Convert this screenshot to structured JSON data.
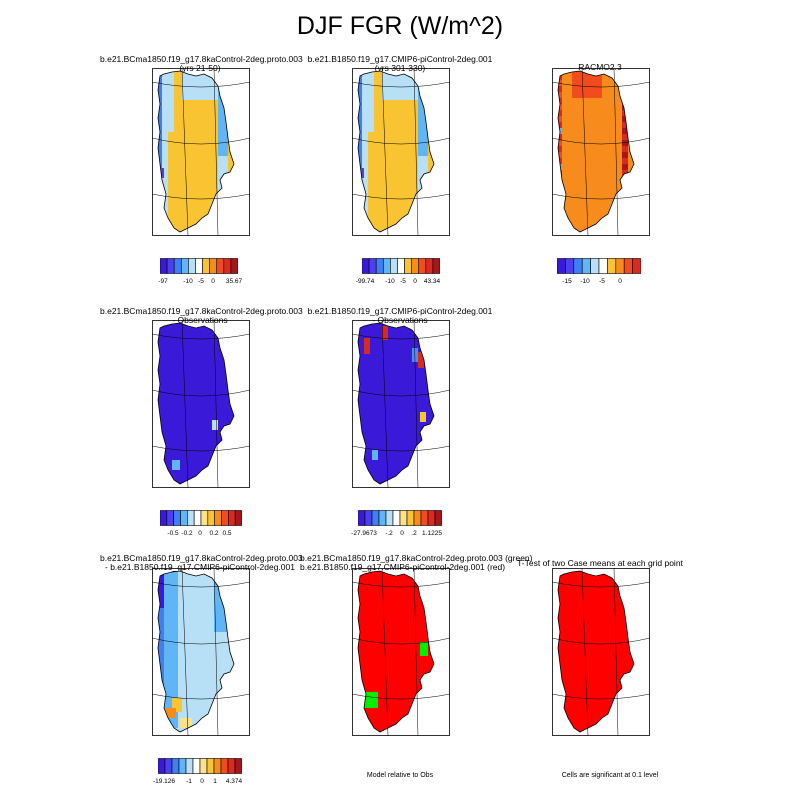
{
  "title": "DJF FGR (W/m^2)",
  "panels": [
    {
      "id": "p1",
      "title_lines": [
        "b.e21.BCma1850.f19_g17.8kaControl-2deg.proto.003",
        "(yrs 21-50)"
      ],
      "style": "model"
    },
    {
      "id": "p2",
      "title_lines": [
        "b.e21.B1850.f19_g17.CMIP6-piControl-2deg.001",
        "(yrs 301-330)"
      ],
      "style": "model"
    },
    {
      "id": "p3",
      "title_lines": [
        "RACMO2.3"
      ],
      "style": "obs"
    },
    {
      "id": "p4",
      "title_lines": [
        "b.e21.BCma1850.f19_g17.8kaControl-2deg.proto.003",
        "- Observations"
      ],
      "style": "blue"
    },
    {
      "id": "p5",
      "title_lines": [
        "b.e21.B1850.f19_g17.CMIP6-piControl-2deg.001",
        "- Observations"
      ],
      "style": "blue2"
    },
    {
      "id": "p7",
      "title_lines": [
        "b.e21.BCma1850.f19_g17.8kaControl-2deg.proto.003",
        "- b.e21.B1850.f19_g17.CMIP6-piControl-2deg.001"
      ],
      "style": "diff"
    },
    {
      "id": "p8",
      "title_lines": [
        "b.e21.BCma1850.f19_g17.8kaControl-2deg.proto.003 (green)",
        "b.e21.B1850.f19_g17.CMIP6-piControl-2deg.001 (red)"
      ],
      "style": "red"
    },
    {
      "id": "p9",
      "title_lines": [
        "T-Test of two Case means at each grid point"
      ],
      "style": "redonly"
    }
  ],
  "colorbars": [
    {
      "id": "cb1",
      "labels": [
        "-97",
        "-10",
        "-5",
        "0",
        "35.67"
      ]
    },
    {
      "id": "cb2",
      "labels": [
        "-99.74",
        "-10",
        "-5",
        "0",
        "43.34"
      ]
    },
    {
      "id": "cb3",
      "labels": [
        "-15",
        "-10",
        "-5",
        "0"
      ]
    },
    {
      "id": "cb4",
      "labels": [
        "-0.5",
        "-0.2",
        "0",
        "0.2",
        "0.5"
      ]
    },
    {
      "id": "cb5",
      "labels": [
        "-27.9673",
        "-.2",
        "0",
        ".2",
        "1.1225"
      ]
    },
    {
      "id": "cb7",
      "labels": [
        "-19.126",
        "-1",
        "0",
        "1",
        "4.374"
      ]
    }
  ],
  "notes": {
    "model_relative": "Model relative to Obs",
    "significance": "Cells are significant at 0.1 level"
  },
  "palette": [
    "#3a1ad8",
    "#4b3ff0",
    "#3f7ff5",
    "#5fb5f5",
    "#b7e0f7",
    "#ffffff",
    "#fde28a",
    "#f8c431",
    "#f78c1c",
    "#f24b1e",
    "#d92a22",
    "#a9151c"
  ]
}
